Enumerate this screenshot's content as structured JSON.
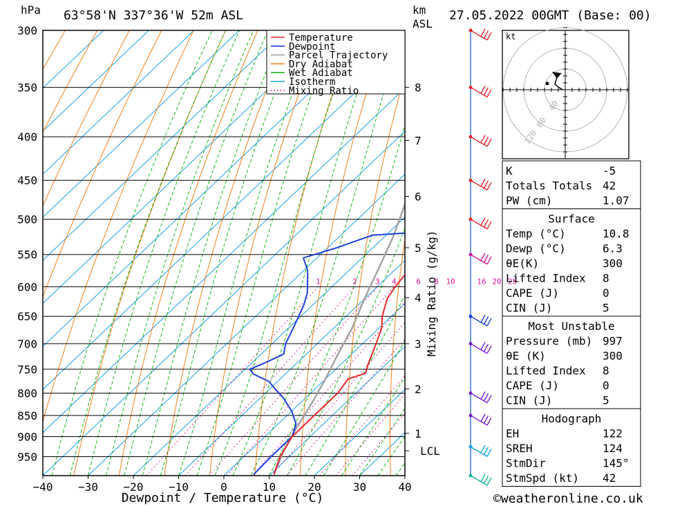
{
  "header": {
    "hpa_unit": "hPa",
    "location": "63°58'N  337°36'W  52m  ASL",
    "km_unit": "km",
    "asl_unit": "ASL",
    "datetime": "27.05.2022  00GMT  (Base: 00)"
  },
  "chart_data": {
    "type": "line",
    "xlabel": "Dewpoint / Temperature (°C)",
    "ylabel": "hPa",
    "xlim": [
      -40,
      40
    ],
    "ylim": [
      1000,
      300
    ],
    "yscale": "log",
    "x_ticks": [
      "−40",
      "−30",
      "−20",
      "−10",
      "0",
      "10",
      "20",
      "30",
      "40"
    ],
    "p_ticks": [
      300,
      350,
      400,
      450,
      500,
      550,
      600,
      650,
      700,
      750,
      800,
      850,
      900,
      950
    ],
    "km_ticks": [
      {
        "label": "8",
        "p": 350
      },
      {
        "label": "7",
        "p": 404
      },
      {
        "label": "6",
        "p": 470
      },
      {
        "label": "5",
        "p": 540
      },
      {
        "label": "4",
        "p": 618
      },
      {
        "label": "3",
        "p": 700
      },
      {
        "label": "2",
        "p": 791
      },
      {
        "label": "1",
        "p": 892
      },
      {
        "label": "LCL",
        "p": 935
      }
    ],
    "mixing_ratio_axis_label": "Mixing Ratio (g/kg)",
    "mixing_ratio_labels": [
      "1",
      "2",
      "3",
      "4",
      "6",
      "8",
      "10",
      "16",
      "20",
      "25"
    ],
    "legend": [
      "Temperature",
      "Dewpoint",
      "Parcel Trajectory",
      "Dry Adiabat",
      "Wet Adiabat",
      "Isotherm",
      "Mixing Ratio"
    ],
    "colors": {
      "temperature": "#e8262b",
      "dewpoint": "#1c3fdc",
      "parcel": "#a0a0a0",
      "dry_adiabat": "#f07f18",
      "wet_adiabat": "#18b418",
      "isotherm": "#1aa0e6",
      "mixing_ratio": "#d0169a"
    },
    "series": [
      {
        "name": "Temperature",
        "points": [
          [
            10.8,
            997
          ],
          [
            8,
            950
          ],
          [
            6,
            900
          ],
          [
            6,
            850
          ],
          [
            6,
            800
          ],
          [
            5,
            770
          ],
          [
            7.5,
            758
          ],
          [
            6,
            740
          ],
          [
            3,
            700
          ],
          [
            0.5,
            670
          ],
          [
            -2,
            650
          ],
          [
            -5,
            620
          ],
          [
            -6,
            600
          ],
          [
            -7,
            570
          ],
          [
            -8,
            545
          ],
          [
            -8,
            525
          ],
          [
            -7,
            505
          ],
          [
            -6,
            495
          ],
          [
            -7,
            480
          ],
          [
            -9,
            460
          ],
          [
            -11,
            440
          ],
          [
            -11,
            420
          ],
          [
            -12,
            405
          ],
          [
            -14,
            390
          ],
          [
            -16,
            370
          ],
          [
            -18,
            350
          ],
          [
            -21,
            330
          ],
          [
            -24,
            310
          ],
          [
            -25,
            300
          ]
        ]
      },
      {
        "name": "Dewpoint",
        "points": [
          [
            6.3,
            997
          ],
          [
            6,
            950
          ],
          [
            6,
            900
          ],
          [
            4,
            870
          ],
          [
            0,
            840
          ],
          [
            -5,
            810
          ],
          [
            -9,
            790
          ],
          [
            -12,
            775
          ],
          [
            -17,
            760
          ],
          [
            -19,
            750
          ],
          [
            -17.5,
            740
          ],
          [
            -15,
            720
          ],
          [
            -17,
            700
          ],
          [
            -19,
            670
          ],
          [
            -22,
            630
          ],
          [
            -24,
            610
          ],
          [
            -29,
            575
          ],
          [
            -33,
            555
          ],
          [
            -28,
            540
          ],
          [
            -23,
            522
          ],
          [
            -14,
            518
          ],
          [
            -14,
            508
          ],
          [
            -13,
            503
          ],
          [
            -15,
            495
          ],
          [
            -18,
            490
          ],
          [
            -12,
            484
          ],
          [
            -12,
            465
          ],
          [
            -13,
            450
          ],
          [
            -14,
            430
          ],
          [
            -21,
            410
          ],
          [
            -22,
            400
          ],
          [
            -19,
            390
          ],
          [
            -16,
            374
          ],
          [
            -20,
            365
          ],
          [
            -22,
            355
          ],
          [
            -25,
            335
          ],
          [
            -25,
            320
          ],
          [
            -24,
            310
          ],
          [
            -24,
            300
          ]
        ]
      },
      {
        "name": "Parcel Trajectory",
        "points": [
          [
            10.8,
            997
          ],
          [
            7.5,
            935
          ],
          [
            5,
            880
          ],
          [
            2.5,
            820
          ],
          [
            0,
            770
          ],
          [
            -3,
            720
          ],
          [
            -6,
            670
          ],
          [
            -10,
            620
          ],
          [
            -14,
            570
          ],
          [
            -18,
            525
          ],
          [
            -23,
            480
          ],
          [
            -28,
            440
          ],
          [
            -33,
            405
          ],
          [
            -38,
            370
          ],
          [
            -42,
            340
          ],
          [
            -46,
            310
          ],
          [
            -47,
            300
          ]
        ]
      }
    ],
    "wind_barbs": [
      {
        "p": 300,
        "color": "#e8262b"
      },
      {
        "p": 350,
        "color": "#e8262b"
      },
      {
        "p": 400,
        "color": "#e8262b"
      },
      {
        "p": 450,
        "color": "#e8262b"
      },
      {
        "p": 500,
        "color": "#e8262b"
      },
      {
        "p": 550,
        "color": "#d0169a"
      },
      {
        "p": 650,
        "color": "#1c3fdc"
      },
      {
        "p": 700,
        "color": "#7a1ccf"
      },
      {
        "p": 800,
        "color": "#7a1ccf"
      },
      {
        "p": 850,
        "color": "#7a1ccf"
      },
      {
        "p": 925,
        "color": "#1aa0e6"
      },
      {
        "p": 1000,
        "color": "#18b4a0"
      }
    ],
    "hodograph": {
      "unit": "kt",
      "ring_labels": [
        "40",
        "80",
        "120"
      ]
    }
  },
  "indices": {
    "general": [
      {
        "label": "K",
        "value": "-5"
      },
      {
        "label": "Totals Totals",
        "value": "42"
      },
      {
        "label": "PW (cm)",
        "value": "1.07"
      }
    ],
    "surface": {
      "title": "Surface",
      "rows": [
        {
          "label": "Temp (°C)",
          "value": "10.8"
        },
        {
          "label": "Dewp (°C)",
          "value": "6.3"
        },
        {
          "label": "θE(K)",
          "value": "300"
        },
        {
          "label": "Lifted Index",
          "value": "8"
        },
        {
          "label": "CAPE (J)",
          "value": "0"
        },
        {
          "label": "CIN (J)",
          "value": "5"
        }
      ]
    },
    "most_unstable": {
      "title": "Most Unstable",
      "rows": [
        {
          "label": "Pressure (mb)",
          "value": "997"
        },
        {
          "label": "θE (K)",
          "value": "300"
        },
        {
          "label": "Lifted Index",
          "value": "8"
        },
        {
          "label": "CAPE (J)",
          "value": "0"
        },
        {
          "label": "CIN (J)",
          "value": "5"
        }
      ]
    },
    "hodograph": {
      "title": "Hodograph",
      "rows": [
        {
          "label": "EH",
          "value": "122"
        },
        {
          "label": "SREH",
          "value": "124"
        },
        {
          "label": "StmDir",
          "value": "145°"
        },
        {
          "label": "StmSpd (kt)",
          "value": "42"
        }
      ]
    }
  },
  "footer": {
    "credit": "©weatheronline.co.uk"
  }
}
